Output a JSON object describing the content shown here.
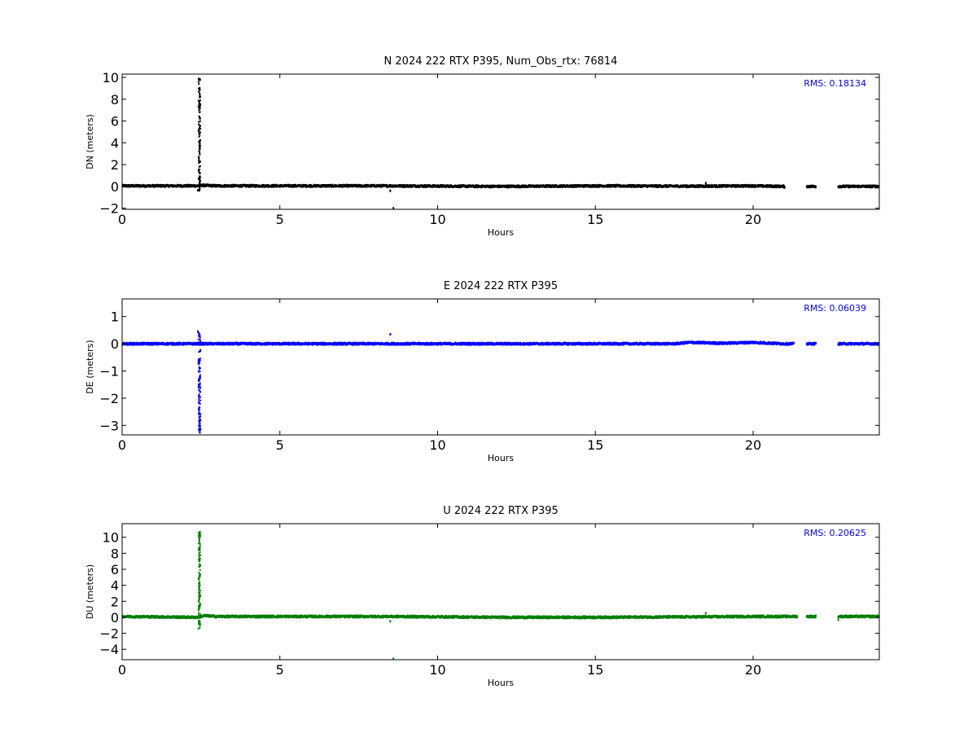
{
  "chart_data": [
    {
      "type": "scatter",
      "title": "N 2024 222 RTX  P395, Num_Obs_rtx: 76814",
      "xlabel": "Hours",
      "ylabel": "DN (meters)",
      "xlim": [
        0,
        24
      ],
      "ylim": [
        -2.1,
        10.3
      ],
      "xticks": [
        0,
        5,
        10,
        15,
        20
      ],
      "yticks": [
        -2,
        0,
        2,
        4,
        6,
        8,
        10
      ],
      "color": "#000000",
      "rms_label": "RMS:  0.18134",
      "rms_color": "#0000ff",
      "series": [
        {
          "baseline": [
            [
              0,
              0.05
            ],
            [
              2.4,
              0.05
            ],
            [
              2.5,
              0.1
            ],
            [
              3,
              0.05
            ],
            [
              8.5,
              0.05
            ],
            [
              12,
              0.0
            ],
            [
              15,
              0.05
            ],
            [
              18,
              0.02
            ],
            [
              20,
              0.05
            ],
            [
              21,
              0.0
            ]
          ],
          "spike": {
            "x": 2.45,
            "min": -0.4,
            "max": 10.0
          },
          "segments": [
            [
              0,
              21
            ],
            [
              21.7,
              22.0
            ],
            [
              22.7,
              24
            ]
          ],
          "outliers": [
            [
              2.4,
              -0.35
            ],
            [
              8.5,
              -0.4
            ],
            [
              8.6,
              -2.0
            ],
            [
              18.5,
              0.3
            ],
            [
              21.0,
              -0.1
            ]
          ]
        }
      ]
    },
    {
      "type": "scatter",
      "title": "E 2024 222 RTX  P395",
      "xlabel": "Hours",
      "ylabel": "DE (meters)",
      "xlim": [
        0,
        24
      ],
      "ylim": [
        -3.35,
        1.65
      ],
      "xticks": [
        0,
        5,
        10,
        15,
        20
      ],
      "yticks": [
        -3,
        -2,
        -1,
        0,
        1
      ],
      "color": "#0000ff",
      "rms_label": "RMS:  0.06039",
      "rms_color": "#0000ff",
      "series": [
        {
          "baseline": [
            [
              0,
              0.0
            ],
            [
              2.4,
              0.0
            ],
            [
              8.5,
              0.0
            ],
            [
              17.5,
              0.0
            ],
            [
              18,
              0.05
            ],
            [
              19,
              0.02
            ],
            [
              20,
              0.05
            ],
            [
              21,
              0.0
            ],
            [
              24,
              0.0
            ]
          ],
          "spike": {
            "x": 2.45,
            "min": -3.3,
            "max": 0.4
          },
          "segments": [
            [
              0,
              21.3
            ],
            [
              21.7,
              22.0
            ],
            [
              22.7,
              24
            ]
          ],
          "outliers": [
            [
              8.5,
              0.35
            ],
            [
              2.4,
              0.45
            ]
          ]
        }
      ]
    },
    {
      "type": "scatter",
      "title": "U 2024 222 RTX  P395",
      "xlabel": "Hours",
      "ylabel": "DU (meters)",
      "xlim": [
        0,
        24
      ],
      "ylim": [
        -5.3,
        11.7
      ],
      "xticks": [
        0,
        5,
        10,
        15,
        20
      ],
      "yticks": [
        -4,
        -2,
        0,
        2,
        4,
        6,
        8,
        10
      ],
      "color": "#007f00",
      "rms_label": "RMS:  0.20625",
      "rms_color": "#0000ff",
      "series": [
        {
          "baseline": [
            [
              0,
              0.1
            ],
            [
              2.4,
              0.0
            ],
            [
              2.6,
              0.2
            ],
            [
              3,
              0.1
            ],
            [
              8.5,
              0.1
            ],
            [
              12,
              0.0
            ],
            [
              15,
              0.0
            ],
            [
              18,
              0.05
            ],
            [
              20,
              0.1
            ],
            [
              21,
              0.1
            ],
            [
              24,
              0.1
            ]
          ],
          "spike": {
            "x": 2.45,
            "min": -1.5,
            "max": 10.8
          },
          "segments": [
            [
              0,
              21.4
            ],
            [
              21.7,
              22.0
            ],
            [
              22.7,
              24
            ]
          ],
          "outliers": [
            [
              8.5,
              -0.5
            ],
            [
              8.6,
              -5.2
            ],
            [
              18.5,
              0.5
            ],
            [
              22.7,
              -0.3
            ]
          ]
        }
      ]
    }
  ]
}
